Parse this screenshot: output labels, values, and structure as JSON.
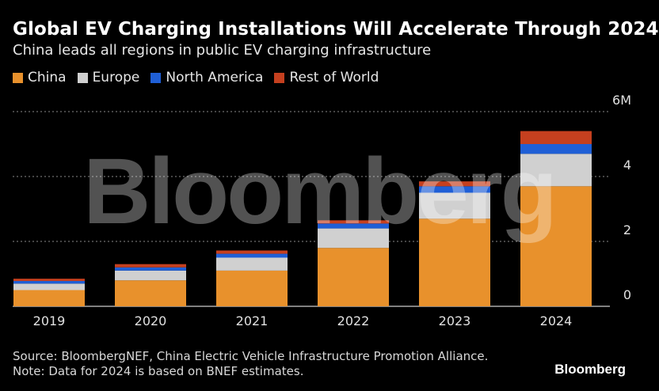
{
  "header": {
    "title": "Global EV Charging Installations Will Accelerate Through 2024",
    "subtitle": "China leads all regions in public EV charging infrastructure"
  },
  "chart_data": {
    "type": "bar",
    "stacked": true,
    "title": "Global EV Charging Installations Will Accelerate Through 2024",
    "subtitle": "China leads all regions in public EV charging infrastructure",
    "categories": [
      "2019",
      "2020",
      "2021",
      "2022",
      "2023",
      "2024"
    ],
    "series": [
      {
        "name": "China",
        "color": "#e8912c",
        "values": [
          0.5,
          0.8,
          1.1,
          1.8,
          2.7,
          3.7
        ]
      },
      {
        "name": "Europe",
        "color": "#d0d0d0",
        "values": [
          0.2,
          0.3,
          0.4,
          0.6,
          0.8,
          1.0
        ]
      },
      {
        "name": "North America",
        "color": "#1f5fd6",
        "values": [
          0.08,
          0.1,
          0.12,
          0.15,
          0.2,
          0.3
        ]
      },
      {
        "name": "Rest of World",
        "color": "#c5401f",
        "values": [
          0.07,
          0.1,
          0.1,
          0.1,
          0.15,
          0.4
        ]
      }
    ],
    "ylim": [
      0,
      6
    ],
    "yticks": [
      "0",
      "2",
      "4",
      "6M"
    ],
    "ytick_values": [
      0,
      2,
      4,
      6
    ],
    "grid": true,
    "legend_position": "top-left",
    "watermark": "Bloomberg"
  },
  "footer": {
    "source": "Source: BloombergNEF, China Electric Vehicle Infrastructure Promotion Alliance.",
    "note": "Note: Data for 2024 is based on BNEF estimates.",
    "brand": "Bloomberg"
  }
}
